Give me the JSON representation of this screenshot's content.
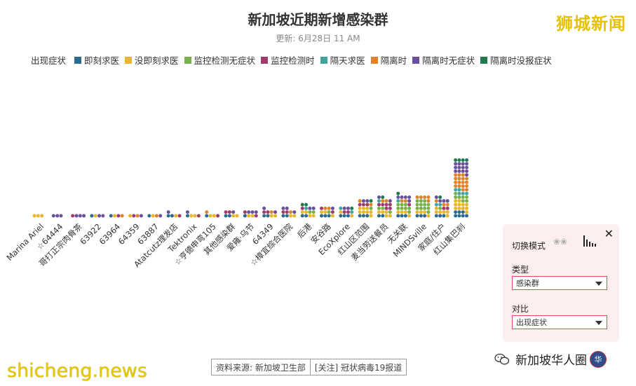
{
  "header": {
    "title": "新加坡近期新增感染群",
    "updated": "更新: 6月28日 11 AM",
    "brand": "狮城新闻"
  },
  "legend": {
    "title": "出现症状",
    "items": [
      {
        "label": "即刻求医",
        "color": "#2d6a8f"
      },
      {
        "label": "没即刻求医",
        "color": "#e9b629"
      },
      {
        "label": "监控检测无症状",
        "color": "#76b24a"
      },
      {
        "label": "监控检测时",
        "color": "#9e3a6c"
      },
      {
        "label": "隔天求医",
        "color": "#3fa4a0"
      },
      {
        "label": "隔离时",
        "color": "#e0822a"
      },
      {
        "label": "隔离时无症状",
        "color": "#6a4f9c"
      },
      {
        "label": "隔离时没报症状",
        "color": "#1f7a4e"
      }
    ]
  },
  "chart_data": {
    "type": "bar",
    "unit": "cases (dots, 4 per row)",
    "categories": [
      "Marina Ariel",
      "☆64444",
      "哥打正宗肉骨茶",
      "63922",
      "63964",
      "64359",
      "63887",
      "Atatcutz理发店",
      "Tektronix",
      "☆亨德申弯105",
      "其他感染群",
      "爱雍·乌节",
      "64349",
      "☆樟宜综合医院",
      "后港",
      "安谷路",
      "EcoXplore",
      "红山区范围",
      "麦当劳送餐员",
      "无关联",
      "MINDSville",
      "家庭/住户",
      "红山集巴刹"
    ],
    "series": [
      {
        "name": "即刻求医",
        "values": [
          0,
          0,
          0,
          1,
          1,
          0,
          1,
          2,
          1,
          1,
          2,
          1,
          2,
          2,
          2,
          3,
          3,
          3,
          2,
          3,
          3,
          3,
          7
        ]
      },
      {
        "name": "没即刻求医",
        "values": [
          3,
          0,
          0,
          1,
          1,
          1,
          1,
          1,
          2,
          2,
          2,
          2,
          2,
          2,
          4,
          3,
          2,
          8,
          5,
          4,
          4,
          6,
          11
        ]
      },
      {
        "name": "监控检测无症状",
        "values": [
          0,
          0,
          0,
          0,
          0,
          0,
          0,
          0,
          0,
          0,
          0,
          0,
          0,
          0,
          2,
          1,
          0,
          1,
          3,
          8,
          12,
          1,
          7
        ]
      },
      {
        "name": "监控检测时",
        "values": [
          0,
          0,
          1,
          0,
          1,
          1,
          0,
          1,
          1,
          1,
          2,
          2,
          2,
          2,
          1,
          2,
          2,
          3,
          6,
          1,
          0,
          2,
          0
        ]
      },
      {
        "name": "隔天求医",
        "values": [
          0,
          0,
          0,
          0,
          0,
          0,
          0,
          0,
          0,
          0,
          0,
          0,
          0,
          0,
          1,
          0,
          2,
          0,
          1,
          1,
          0,
          2,
          5
        ]
      },
      {
        "name": "隔离时",
        "values": [
          0,
          0,
          0,
          0,
          1,
          1,
          1,
          0,
          0,
          1,
          0,
          0,
          1,
          1,
          0,
          2,
          0,
          2,
          2,
          2,
          5,
          3,
          17
        ]
      },
      {
        "name": "隔离时无症状",
        "values": [
          0,
          3,
          3,
          2,
          0,
          1,
          1,
          1,
          1,
          0,
          1,
          3,
          2,
          3,
          2,
          1,
          2,
          2,
          2,
          5,
          0,
          4,
          13
        ]
      },
      {
        "name": "隔离时没报症状",
        "values": [
          0,
          0,
          0,
          0,
          0,
          0,
          0,
          0,
          0,
          0,
          0,
          0,
          0,
          0,
          2,
          0,
          1,
          1,
          1,
          1,
          0,
          1,
          4
        ]
      }
    ]
  },
  "panel": {
    "mode_label": "切换模式",
    "type_label": "类型",
    "type_value": "感染群",
    "compare_label": "对比",
    "compare_value": "出现症状"
  },
  "footer": {
    "source": "资料来源: 新加坡卫生部",
    "follow": "[关注] 冠状病毒19报道",
    "site": "shicheng.news",
    "wechat": "新加坡华人圈",
    "badge": "华"
  }
}
